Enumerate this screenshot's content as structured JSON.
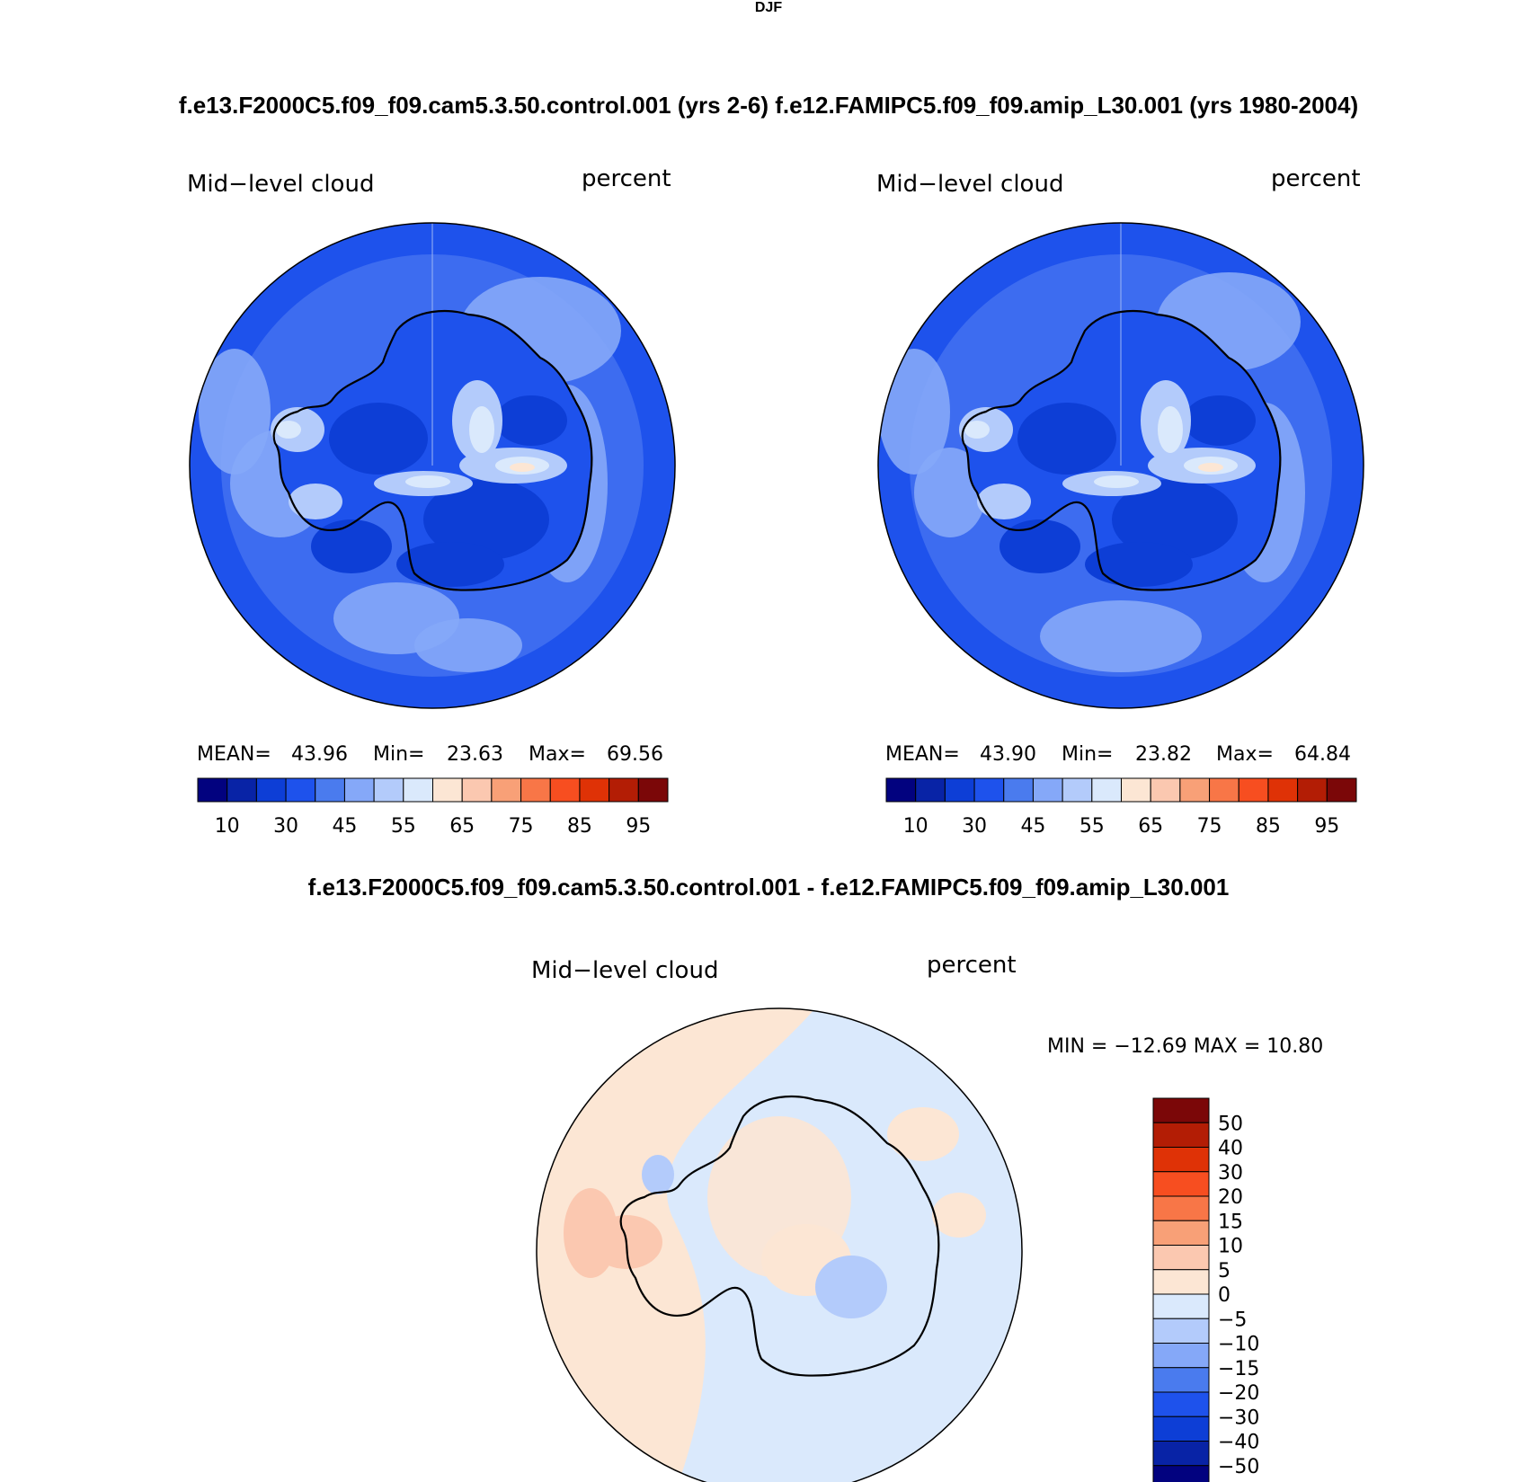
{
  "header": {
    "title": "DJF",
    "subtitle": "f.e13.F2000C5.f09_f09.cam5.3.50.control.001 (yrs 2-6)  f.e12.FAMIPC5.f09_f09.amip_L30.001 (yrs 1980-2004)",
    "diff_title": "f.e13.F2000C5.f09_f09.cam5.3.50.control.001 - f.e12.FAMIPC5.f09_f09.amip_L30.001"
  },
  "panels": [
    {
      "variable": "Mid−level cloud",
      "units": "percent",
      "stats": {
        "mean_label": "MEAN=",
        "mean": "43.96",
        "min_label": "Min=",
        "min": "23.63",
        "max_label": "Max=",
        "max": "69.56"
      }
    },
    {
      "variable": "Mid−level cloud",
      "units": "percent",
      "stats": {
        "mean_label": "MEAN=",
        "mean": "43.90",
        "min_label": "Min=",
        "min": "23.82",
        "max_label": "Max=",
        "max": "64.84"
      }
    }
  ],
  "colorbar": {
    "tick_labels": [
      "10",
      "30",
      "45",
      "55",
      "65",
      "75",
      "85",
      "95"
    ],
    "colors": [
      "#02027f",
      "#0823a6",
      "#0d3ed6",
      "#1e52ec",
      "#4a7bee",
      "#85a8f8",
      "#b3cbfb",
      "#dae9fc",
      "#fce6d4",
      "#fbc8b0",
      "#f8a077",
      "#f87647",
      "#f74e20",
      "#df3206",
      "#b31d05",
      "#7b0708"
    ]
  },
  "diff_panel": {
    "variable": "Mid−level cloud",
    "units": "percent",
    "min_max_text": "MIN = −12.69  MAX =   10.80",
    "colorbar": {
      "labels": [
        "50",
        "40",
        "30",
        "20",
        "15",
        "10",
        "5",
        "0",
        "−5",
        "−10",
        "−15",
        "−20",
        "−30",
        "−40",
        "−50"
      ],
      "colors": [
        "#7b0708",
        "#b31d05",
        "#df3206",
        "#f74e20",
        "#f87647",
        "#f8a077",
        "#fbc8b0",
        "#fce6d4",
        "#dae9fc",
        "#b3cbfb",
        "#85a8f8",
        "#4a7bee",
        "#1e52ec",
        "#0d3ed6",
        "#0823a6",
        "#02027f"
      ]
    }
  },
  "field_colors": {
    "ocean_base": "#3d6cf0",
    "ocean_light": "#85a8f8",
    "deep": "#0d3ed6",
    "mid": "#1e52ec",
    "pale": "#b3cbfb",
    "white": "#dae9fc",
    "warm": "#fce6d4",
    "diff_pos": "#fce6d4",
    "diff_neg": "#dae9fc",
    "diff_pos_strong": "#fbc8b0",
    "diff_neg_strong": "#b3cbfb"
  }
}
